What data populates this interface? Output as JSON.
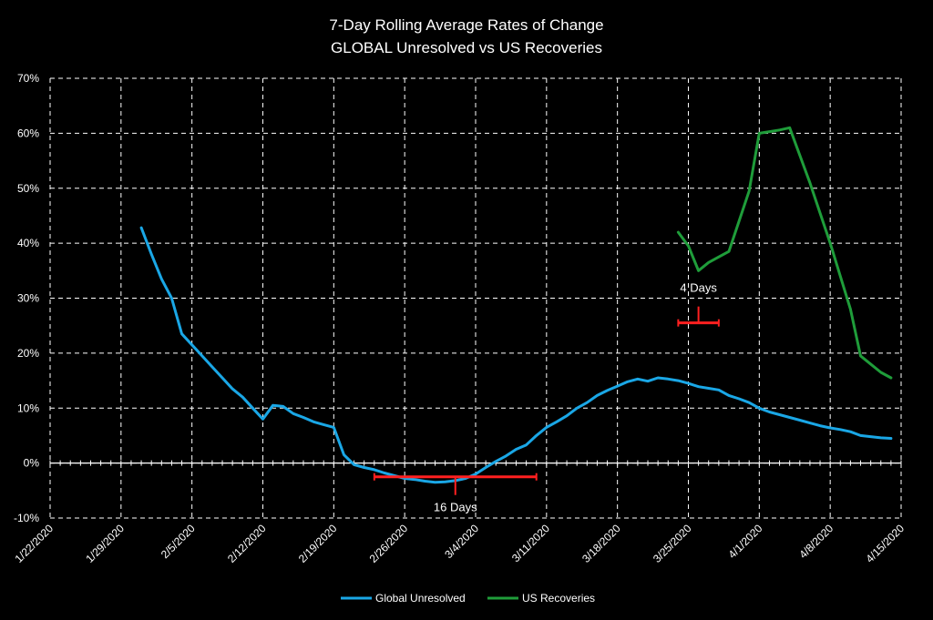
{
  "chart_data": {
    "type": "line",
    "title": "7-Day Rolling Average Rates of Change",
    "subtitle": "GLOBAL Unresolved vs US Recoveries",
    "xlabel": "",
    "ylabel": "",
    "ylim": [
      -10,
      70
    ],
    "y_ticks": [
      "-10%",
      "0%",
      "10%",
      "20%",
      "30%",
      "40%",
      "50%",
      "60%",
      "70%"
    ],
    "x_ticks": [
      "1/22/2020",
      "1/29/2020",
      "2/5/2020",
      "2/12/2020",
      "2/19/2020",
      "2/26/2020",
      "3/4/2020",
      "3/11/2020",
      "3/18/2020",
      "3/25/2020",
      "4/1/2020",
      "4/8/2020",
      "4/15/2020"
    ],
    "grid": true,
    "legend_position": "bottom",
    "colors": {
      "global": "#1aa7e6",
      "us": "#1f9d3a",
      "annotation": "#ff2020",
      "grid": "#ffffff",
      "background": "#000000"
    },
    "series": [
      {
        "name": "Global Unresolved",
        "key": "global",
        "x": [
          "1/31/2020",
          "2/1/2020",
          "2/2/2020",
          "2/3/2020",
          "2/4/2020",
          "2/5/2020",
          "2/6/2020",
          "2/7/2020",
          "2/8/2020",
          "2/9/2020",
          "2/10/2020",
          "2/11/2020",
          "2/12/2020",
          "2/13/2020",
          "2/14/2020",
          "2/15/2020",
          "2/16/2020",
          "2/17/2020",
          "2/18/2020",
          "2/19/2020",
          "2/20/2020",
          "2/21/2020",
          "2/22/2020",
          "2/23/2020",
          "2/24/2020",
          "2/25/2020",
          "2/26/2020",
          "2/27/2020",
          "2/28/2020",
          "2/29/2020",
          "3/1/2020",
          "3/2/2020",
          "3/3/2020",
          "3/4/2020",
          "3/5/2020",
          "3/6/2020",
          "3/7/2020",
          "3/8/2020",
          "3/9/2020",
          "3/10/2020",
          "3/11/2020",
          "3/12/2020",
          "3/13/2020",
          "3/14/2020",
          "3/15/2020",
          "3/16/2020",
          "3/17/2020",
          "3/18/2020",
          "3/19/2020",
          "3/20/2020",
          "3/21/2020",
          "3/22/2020",
          "3/23/2020",
          "3/24/2020",
          "3/25/2020",
          "3/26/2020",
          "3/27/2020",
          "3/28/2020",
          "3/29/2020",
          "3/30/2020",
          "3/31/2020",
          "4/1/2020",
          "4/2/2020",
          "4/3/2020",
          "4/4/2020",
          "4/5/2020",
          "4/6/2020",
          "4/7/2020",
          "4/8/2020",
          "4/9/2020",
          "4/10/2020",
          "4/11/2020",
          "4/12/2020",
          "4/13/2020",
          "4/14/2020"
        ],
        "values": [
          42.8,
          38.0,
          33.5,
          30.0,
          23.5,
          21.5,
          19.5,
          17.5,
          15.5,
          13.5,
          12.0,
          10.0,
          8.0,
          10.5,
          10.3,
          9.0,
          8.3,
          7.5,
          7.0,
          6.5,
          1.5,
          -0.3,
          -0.8,
          -1.2,
          -1.8,
          -2.3,
          -2.8,
          -3.0,
          -3.3,
          -3.5,
          -3.4,
          -3.2,
          -2.8,
          -2.0,
          -0.8,
          0.3,
          1.3,
          2.5,
          3.3,
          5.0,
          6.5,
          7.5,
          8.6,
          10.0,
          11.0,
          12.3,
          13.2,
          14.0,
          14.8,
          15.3,
          14.9,
          15.5,
          15.3,
          15.0,
          14.5,
          13.9,
          13.6,
          13.3,
          12.3,
          11.7,
          11.0,
          10.0,
          9.3,
          8.8,
          8.3,
          7.8,
          7.3,
          6.8,
          6.4,
          6.1,
          5.7,
          5.0,
          4.8,
          4.6,
          4.5
        ],
        "x_start_day": 9
      },
      {
        "name": "US Recoveries",
        "key": "us",
        "x": [
          "3/24/2020",
          "3/25/2020",
          "3/26/2020",
          "3/27/2020",
          "3/28/2020",
          "3/29/2020",
          "3/30/2020",
          "3/31/2020",
          "4/1/2020",
          "4/2/2020",
          "4/3/2020",
          "4/4/2020",
          "4/5/2020",
          "4/6/2020",
          "4/7/2020",
          "4/8/2020",
          "4/9/2020",
          "4/10/2020",
          "4/11/2020",
          "4/12/2020",
          "4/13/2020",
          "4/14/2020"
        ],
        "values": [
          42.0,
          39.5,
          35.0,
          36.5,
          37.5,
          38.5,
          44.0,
          49.5,
          60.0,
          60.3,
          60.6,
          61.0,
          56.0,
          51.0,
          45.5,
          40.0,
          34.0,
          28.0,
          19.5,
          18.0,
          16.5,
          15.5
        ],
        "x_start_day": 62
      }
    ],
    "annotations": [
      {
        "label": "16 Days",
        "type": "bracket-down",
        "x_from": "2/23/2020",
        "x_to": "3/10/2020",
        "y": -2.5,
        "x_from_day": 32,
        "x_to_day": 48
      },
      {
        "label": "4 Days",
        "type": "bracket-up",
        "x_from": "3/24/2020",
        "x_to": "3/28/2020",
        "y": 25.5,
        "x_from_day": 62,
        "x_to_day": 66
      }
    ]
  }
}
